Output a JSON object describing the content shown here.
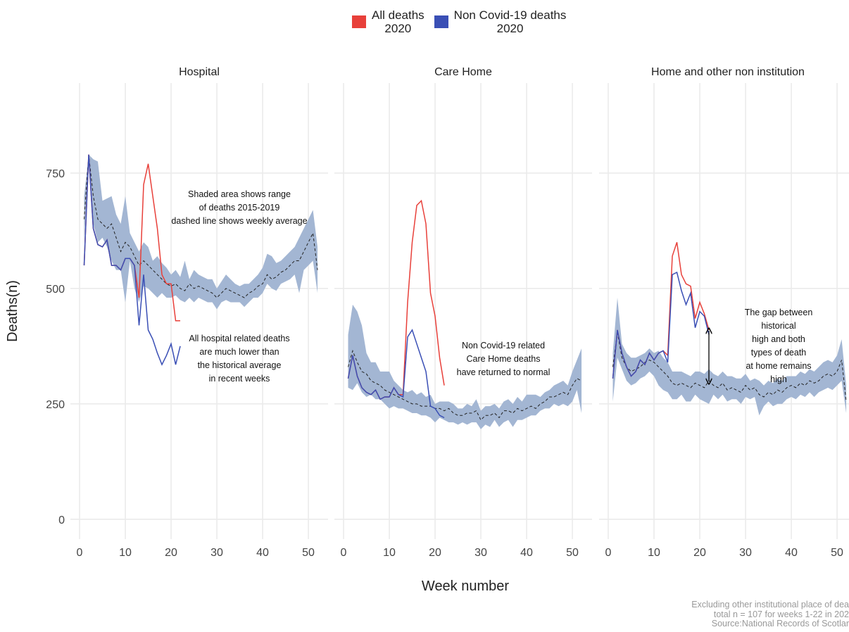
{
  "legend": [
    {
      "name": "All deaths\n2020",
      "color": "#e8403a"
    },
    {
      "name": "Non Covid-19 deaths\n2020",
      "color": "#3a4fb5"
    }
  ],
  "xlabel": "Week number",
  "ylabel": "Deaths(n)",
  "caption": [
    "Excluding other institutional place of dea",
    "total n = 107 for weeks 1-22 in 202",
    "Source:National Records of Scotlar"
  ],
  "chart_data": [
    {
      "type": "line",
      "title": "Hospital",
      "xlim": [
        -2,
        54.3
      ],
      "ylim": [
        -43,
        945
      ],
      "xticks": [
        0,
        10,
        20,
        30,
        40,
        50
      ],
      "yticks": [
        0,
        250,
        500,
        750
      ],
      "band_color": "#a3b6d3",
      "annotations": [
        "Shaded area shows range\nof deaths 2015-2019\ndashed line shows weekly average",
        "All hospital related deaths\nare much lower than\nthe historical average\nin recent weeks"
      ],
      "x": [
        1,
        2,
        3,
        4,
        5,
        6,
        7,
        8,
        9,
        10,
        11,
        12,
        13,
        14,
        15,
        16,
        17,
        18,
        19,
        20,
        21,
        22,
        23,
        24,
        25,
        26,
        27,
        28,
        29,
        30,
        31,
        32,
        33,
        34,
        35,
        36,
        37,
        38,
        39,
        40,
        41,
        42,
        43,
        44,
        45,
        46,
        47,
        48,
        49,
        50,
        51,
        52
      ],
      "range_max": [
        700,
        790,
        780,
        775,
        690,
        695,
        700,
        660,
        640,
        700,
        620,
        600,
        580,
        600,
        590,
        560,
        570,
        555,
        545,
        530,
        540,
        525,
        560,
        520,
        540,
        530,
        525,
        520,
        520,
        500,
        515,
        530,
        520,
        510,
        505,
        510,
        510,
        520,
        530,
        545,
        575,
        570,
        555,
        560,
        570,
        580,
        590,
        610,
        630,
        650,
        670,
        590
      ],
      "range_min": [
        600,
        780,
        640,
        600,
        610,
        590,
        560,
        540,
        540,
        470,
        560,
        500,
        470,
        505,
        500,
        490,
        480,
        490,
        480,
        480,
        485,
        475,
        470,
        480,
        470,
        480,
        475,
        470,
        470,
        455,
        470,
        475,
        470,
        470,
        470,
        460,
        470,
        480,
        480,
        490,
        510,
        500,
        495,
        510,
        515,
        520,
        530,
        490,
        540,
        550,
        560,
        490
      ],
      "average": [
        650,
        790,
        700,
        650,
        640,
        630,
        640,
        610,
        580,
        600,
        590,
        570,
        550,
        560,
        550,
        540,
        530,
        520,
        510,
        505,
        510,
        500,
        495,
        510,
        500,
        505,
        500,
        495,
        490,
        480,
        490,
        500,
        495,
        490,
        485,
        480,
        490,
        495,
        505,
        510,
        530,
        520,
        525,
        535,
        540,
        550,
        560,
        560,
        580,
        600,
        620,
        540
      ],
      "series": [
        {
          "values": [
            550,
            790,
            630,
            595,
            590,
            605,
            550,
            550,
            540,
            565,
            565,
            550,
            480,
            725,
            770,
            700,
            630,
            530,
            510,
            510,
            430,
            430,
            null,
            null,
            null,
            null,
            null,
            null,
            null,
            null,
            null,
            null,
            null,
            null,
            null,
            null,
            null,
            null,
            null,
            null,
            null,
            null,
            null,
            null,
            null,
            null,
            null,
            null,
            null,
            null,
            null,
            null
          ]
        },
        {
          "values": [
            550,
            790,
            630,
            595,
            590,
            605,
            550,
            550,
            540,
            565,
            565,
            550,
            420,
            530,
            410,
            390,
            360,
            335,
            355,
            380,
            335,
            375,
            null,
            null,
            null,
            null,
            null,
            null,
            null,
            null,
            null,
            null,
            null,
            null,
            null,
            null,
            null,
            null,
            null,
            null,
            null,
            null,
            null,
            null,
            null,
            null,
            null,
            null,
            null,
            null,
            null,
            null
          ]
        }
      ]
    },
    {
      "type": "line",
      "title": "Care Home",
      "xlim": [
        -2,
        54.3
      ],
      "ylim": [
        -43,
        945
      ],
      "xticks": [
        0,
        10,
        20,
        30,
        40,
        50
      ],
      "band_color": "#a3b6d3",
      "annotations": [
        "Non Covid-19 related\nCare Home deaths\nhave returned to normal"
      ],
      "x": [
        1,
        2,
        3,
        4,
        5,
        6,
        7,
        8,
        9,
        10,
        11,
        12,
        13,
        14,
        15,
        16,
        17,
        18,
        19,
        20,
        21,
        22,
        23,
        24,
        25,
        26,
        27,
        28,
        29,
        30,
        31,
        32,
        33,
        34,
        35,
        36,
        37,
        38,
        39,
        40,
        41,
        42,
        43,
        44,
        45,
        46,
        47,
        48,
        49,
        50,
        51,
        52
      ],
      "range_max": [
        400,
        465,
        450,
        420,
        360,
        340,
        340,
        320,
        320,
        320,
        300,
        290,
        280,
        275,
        280,
        270,
        275,
        265,
        270,
        250,
        255,
        255,
        255,
        250,
        240,
        240,
        250,
        245,
        260,
        235,
        245,
        245,
        250,
        240,
        255,
        260,
        250,
        265,
        255,
        270,
        270,
        270,
        265,
        275,
        280,
        290,
        295,
        300,
        290,
        320,
        345,
        370
      ],
      "range_min": [
        285,
        280,
        295,
        275,
        265,
        270,
        260,
        260,
        250,
        240,
        245,
        240,
        240,
        235,
        230,
        230,
        225,
        225,
        220,
        210,
        220,
        215,
        210,
        210,
        205,
        210,
        205,
        210,
        210,
        195,
        205,
        200,
        215,
        200,
        210,
        215,
        200,
        215,
        215,
        220,
        225,
        225,
        235,
        240,
        240,
        250,
        245,
        250,
        245,
        255,
        280,
        230
      ],
      "average": [
        330,
        365,
        340,
        320,
        315,
        300,
        295,
        290,
        280,
        275,
        270,
        265,
        260,
        255,
        250,
        250,
        245,
        245,
        245,
        240,
        240,
        235,
        240,
        230,
        225,
        225,
        230,
        230,
        235,
        215,
        225,
        225,
        230,
        220,
        235,
        235,
        230,
        240,
        235,
        240,
        245,
        240,
        250,
        255,
        265,
        265,
        270,
        275,
        270,
        290,
        305,
        300
      ],
      "series": [
        {
          "values": [
            305,
            355,
            310,
            285,
            275,
            270,
            280,
            260,
            265,
            265,
            285,
            270,
            270,
            470,
            600,
            680,
            690,
            640,
            490,
            440,
            350,
            290,
            null,
            null,
            null,
            null,
            null,
            null,
            null,
            null,
            null,
            null,
            null,
            null,
            null,
            null,
            null,
            null,
            null,
            null,
            null,
            null,
            null,
            null,
            null,
            null,
            null,
            null,
            null,
            null,
            null,
            null
          ]
        },
        {
          "values": [
            305,
            355,
            310,
            285,
            275,
            270,
            280,
            260,
            265,
            265,
            285,
            270,
            265,
            395,
            410,
            380,
            350,
            320,
            245,
            240,
            225,
            220,
            null,
            null,
            null,
            null,
            null,
            null,
            null,
            null,
            null,
            null,
            null,
            null,
            null,
            null,
            null,
            null,
            null,
            null,
            null,
            null,
            null,
            null,
            null,
            null,
            null,
            null,
            null,
            null,
            null,
            null
          ]
        }
      ]
    },
    {
      "type": "line",
      "title": "Home and other non institution",
      "xlim": [
        -2,
        54.3
      ],
      "ylim": [
        -43,
        945
      ],
      "xticks": [
        0,
        10,
        20,
        30,
        40,
        50
      ],
      "band_color": "#a3b6d3",
      "annotations": [
        "The gap between historical\nhigh and both types of death\nat home remains high"
      ],
      "x": [
        1,
        2,
        3,
        4,
        5,
        6,
        7,
        8,
        9,
        10,
        11,
        12,
        13,
        14,
        15,
        16,
        17,
        18,
        19,
        20,
        21,
        22,
        23,
        24,
        25,
        26,
        27,
        28,
        29,
        30,
        31,
        32,
        33,
        34,
        35,
        36,
        37,
        38,
        39,
        40,
        41,
        42,
        43,
        44,
        45,
        46,
        47,
        48,
        49,
        50,
        51,
        52
      ],
      "range_max": [
        360,
        480,
        380,
        360,
        350,
        350,
        355,
        360,
        370,
        360,
        365,
        350,
        340,
        320,
        320,
        320,
        315,
        310,
        320,
        320,
        315,
        325,
        315,
        310,
        320,
        310,
        310,
        305,
        305,
        315,
        300,
        305,
        300,
        290,
        300,
        295,
        305,
        300,
        310,
        310,
        310,
        320,
        315,
        325,
        320,
        330,
        340,
        345,
        340,
        355,
        390,
        290
      ],
      "range_min": [
        255,
        350,
        325,
        300,
        290,
        295,
        305,
        310,
        320,
        310,
        290,
        280,
        275,
        260,
        260,
        270,
        255,
        255,
        270,
        260,
        255,
        250,
        270,
        260,
        270,
        255,
        260,
        260,
        250,
        265,
        260,
        265,
        225,
        245,
        255,
        245,
        250,
        250,
        260,
        265,
        260,
        270,
        265,
        275,
        265,
        275,
        280,
        285,
        280,
        290,
        300,
        230
      ],
      "average": [
        330,
        405,
        350,
        330,
        320,
        325,
        330,
        340,
        345,
        340,
        330,
        320,
        310,
        295,
        290,
        295,
        290,
        285,
        295,
        290,
        285,
        300,
        290,
        285,
        295,
        280,
        285,
        280,
        275,
        290,
        280,
        285,
        270,
        265,
        275,
        270,
        280,
        275,
        285,
        290,
        285,
        295,
        290,
        300,
        295,
        300,
        310,
        315,
        310,
        320,
        345,
        255
      ],
      "series": [
        {
          "values": [
            305,
            410,
            360,
            330,
            310,
            320,
            345,
            335,
            360,
            345,
            360,
            365,
            355,
            570,
            600,
            530,
            510,
            505,
            435,
            470,
            445,
            410,
            null,
            null,
            null,
            null,
            null,
            null,
            null,
            null,
            null,
            null,
            null,
            null,
            null,
            null,
            null,
            null,
            null,
            null,
            null,
            null,
            null,
            null,
            null,
            null,
            null,
            null,
            null,
            null,
            null,
            null
          ]
        },
        {
          "values": [
            305,
            410,
            360,
            330,
            310,
            320,
            345,
            335,
            360,
            345,
            360,
            365,
            340,
            530,
            535,
            495,
            465,
            490,
            415,
            450,
            440,
            400,
            null,
            null,
            null,
            null,
            null,
            null,
            null,
            null,
            null,
            null,
            null,
            null,
            null,
            null,
            null,
            null,
            null,
            null,
            null,
            null,
            null,
            null,
            null,
            null,
            null,
            null,
            null,
            null,
            null,
            null
          ]
        }
      ]
    }
  ]
}
